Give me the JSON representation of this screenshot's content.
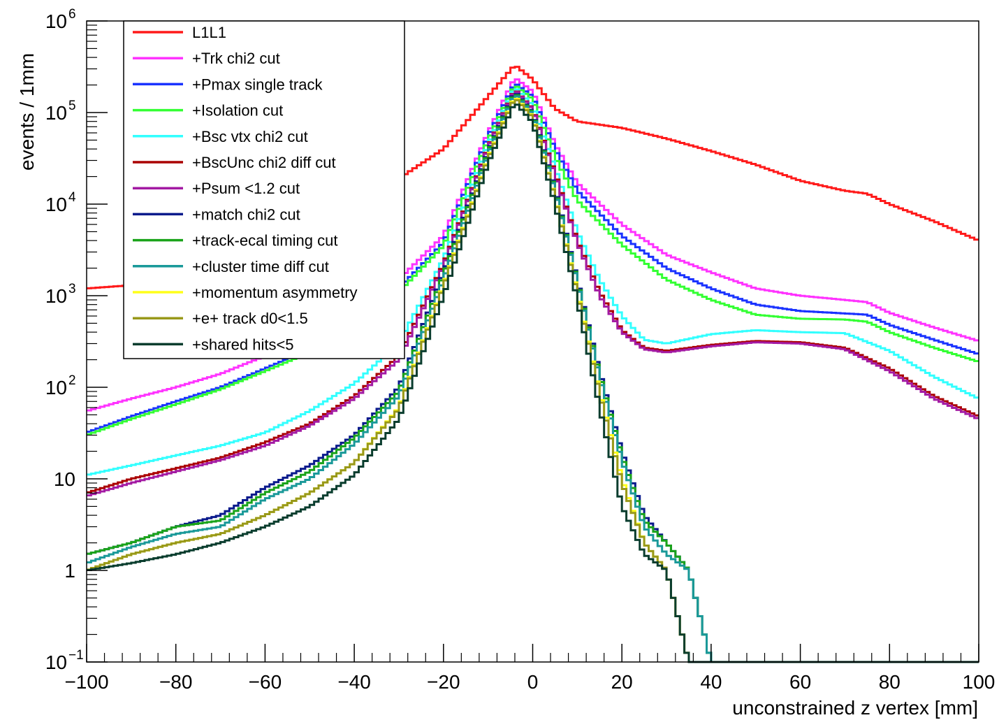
{
  "chart_data": {
    "type": "line",
    "title": "",
    "xlabel": "unconstrained z vertex [mm]",
    "ylabel": "events / 1mm",
    "xlim": [
      -100,
      100
    ],
    "ylim": [
      0.1,
      1000000
    ],
    "y_scale": "log",
    "legend_position": "top-left",
    "x_ticks": [
      {
        "value": -100,
        "label": "−100"
      },
      {
        "value": -80,
        "label": "−80"
      },
      {
        "value": -60,
        "label": "−60"
      },
      {
        "value": -40,
        "label": "−40"
      },
      {
        "value": -20,
        "label": "−20"
      },
      {
        "value": 0,
        "label": "0"
      },
      {
        "value": 20,
        "label": "20"
      },
      {
        "value": 40,
        "label": "40"
      },
      {
        "value": 60,
        "label": "60"
      },
      {
        "value": 80,
        "label": "80"
      },
      {
        "value": 100,
        "label": "100"
      }
    ],
    "y_ticks": [
      {
        "value": 0.1,
        "base": "10",
        "exp": "−1"
      },
      {
        "value": 1,
        "base": "1",
        "exp": ""
      },
      {
        "value": 10,
        "base": "10",
        "exp": ""
      },
      {
        "value": 100,
        "base": "10",
        "exp": "2"
      },
      {
        "value": 1000,
        "base": "10",
        "exp": "3"
      },
      {
        "value": 10000,
        "base": "10",
        "exp": "4"
      },
      {
        "value": 100000,
        "base": "10",
        "exp": "5"
      },
      {
        "value": 1000000,
        "base": "10",
        "exp": "6"
      }
    ],
    "series": [
      {
        "name": "L1L1",
        "color": "#ff1a1a",
        "points": [
          [
            -100,
            1200
          ],
          [
            -90,
            1300
          ],
          [
            -80,
            1600
          ],
          [
            -70,
            2200
          ],
          [
            -60,
            3500
          ],
          [
            -50,
            6000
          ],
          [
            -40,
            11000
          ],
          [
            -30,
            19000
          ],
          [
            -20,
            40000
          ],
          [
            -10,
            150000
          ],
          [
            -4,
            330000
          ],
          [
            0,
            230000
          ],
          [
            5,
            110000
          ],
          [
            10,
            80000
          ],
          [
            20,
            68000
          ],
          [
            30,
            52000
          ],
          [
            40,
            38000
          ],
          [
            50,
            27000
          ],
          [
            60,
            18000
          ],
          [
            70,
            14000
          ],
          [
            75,
            13000
          ],
          [
            80,
            10000
          ],
          [
            90,
            6500
          ],
          [
            100,
            4000
          ]
        ]
      },
      {
        "name": "+Trk chi2 cut",
        "color": "#ff33ff",
        "points": [
          [
            -100,
            55
          ],
          [
            -90,
            75
          ],
          [
            -80,
            100
          ],
          [
            -70,
            140
          ],
          [
            -60,
            220
          ],
          [
            -50,
            350
          ],
          [
            -40,
            700
          ],
          [
            -30,
            1500
          ],
          [
            -20,
            4500
          ],
          [
            -10,
            60000
          ],
          [
            -4,
            240000
          ],
          [
            0,
            170000
          ],
          [
            5,
            45000
          ],
          [
            10,
            17000
          ],
          [
            20,
            6000
          ],
          [
            30,
            2800
          ],
          [
            40,
            1800
          ],
          [
            50,
            1200
          ],
          [
            60,
            1000
          ],
          [
            70,
            900
          ],
          [
            75,
            850
          ],
          [
            80,
            650
          ],
          [
            90,
            450
          ],
          [
            100,
            320
          ]
        ]
      },
      {
        "name": "+Pmax single track",
        "color": "#1a33ff",
        "points": [
          [
            -100,
            32
          ],
          [
            -90,
            48
          ],
          [
            -80,
            70
          ],
          [
            -70,
            100
          ],
          [
            -60,
            160
          ],
          [
            -50,
            260
          ],
          [
            -40,
            550
          ],
          [
            -30,
            1200
          ],
          [
            -20,
            3800
          ],
          [
            -10,
            55000
          ],
          [
            -4,
            210000
          ],
          [
            0,
            150000
          ],
          [
            5,
            40000
          ],
          [
            10,
            14000
          ],
          [
            20,
            4500
          ],
          [
            30,
            2000
          ],
          [
            40,
            1200
          ],
          [
            50,
            800
          ],
          [
            60,
            680
          ],
          [
            70,
            640
          ],
          [
            75,
            620
          ],
          [
            80,
            480
          ],
          [
            90,
            330
          ],
          [
            100,
            230
          ]
        ]
      },
      {
        "name": "+Isolation cut",
        "color": "#33ff33",
        "points": [
          [
            -100,
            30
          ],
          [
            -90,
            45
          ],
          [
            -80,
            65
          ],
          [
            -70,
            95
          ],
          [
            -60,
            150
          ],
          [
            -50,
            240
          ],
          [
            -40,
            500
          ],
          [
            -30,
            1100
          ],
          [
            -20,
            3500
          ],
          [
            -10,
            50000
          ],
          [
            -4,
            200000
          ],
          [
            0,
            140000
          ],
          [
            5,
            33000
          ],
          [
            10,
            11000
          ],
          [
            20,
            3600
          ],
          [
            30,
            1500
          ],
          [
            40,
            900
          ],
          [
            50,
            620
          ],
          [
            60,
            560
          ],
          [
            70,
            550
          ],
          [
            75,
            520
          ],
          [
            80,
            400
          ],
          [
            90,
            270
          ],
          [
            100,
            190
          ]
        ]
      },
      {
        "name": "+Bsc vtx chi2 cut",
        "color": "#33ffff",
        "points": [
          [
            -100,
            11
          ],
          [
            -90,
            14
          ],
          [
            -80,
            18
          ],
          [
            -70,
            23
          ],
          [
            -60,
            32
          ],
          [
            -50,
            55
          ],
          [
            -40,
            110
          ],
          [
            -30,
            300
          ],
          [
            -20,
            2500
          ],
          [
            -10,
            45000
          ],
          [
            -4,
            190000
          ],
          [
            0,
            120000
          ],
          [
            5,
            25000
          ],
          [
            10,
            5000
          ],
          [
            15,
            1500
          ],
          [
            20,
            600
          ],
          [
            25,
            330
          ],
          [
            30,
            300
          ],
          [
            40,
            380
          ],
          [
            50,
            420
          ],
          [
            60,
            400
          ],
          [
            70,
            390
          ],
          [
            80,
            250
          ],
          [
            90,
            130
          ],
          [
            100,
            75
          ]
        ]
      },
      {
        "name": "+BscUnc chi2 diff cut",
        "color": "#aa0000",
        "points": [
          [
            -100,
            7
          ],
          [
            -90,
            10
          ],
          [
            -80,
            13
          ],
          [
            -70,
            17
          ],
          [
            -60,
            25
          ],
          [
            -50,
            40
          ],
          [
            -40,
            80
          ],
          [
            -30,
            220
          ],
          [
            -20,
            2200
          ],
          [
            -10,
            42000
          ],
          [
            -4,
            180000
          ],
          [
            0,
            110000
          ],
          [
            5,
            22000
          ],
          [
            10,
            4000
          ],
          [
            15,
            1100
          ],
          [
            20,
            420
          ],
          [
            25,
            270
          ],
          [
            30,
            250
          ],
          [
            40,
            290
          ],
          [
            50,
            320
          ],
          [
            60,
            310
          ],
          [
            70,
            270
          ],
          [
            80,
            160
          ],
          [
            90,
            80
          ],
          [
            100,
            48
          ]
        ]
      },
      {
        "name": "+Psum <1.2 cut",
        "color": "#a31aa3",
        "points": [
          [
            -100,
            6.5
          ],
          [
            -90,
            9
          ],
          [
            -80,
            12
          ],
          [
            -70,
            16
          ],
          [
            -60,
            23
          ],
          [
            -50,
            38
          ],
          [
            -40,
            75
          ],
          [
            -30,
            200
          ],
          [
            -20,
            2100
          ],
          [
            -10,
            41000
          ],
          [
            -4,
            178000
          ],
          [
            0,
            108000
          ],
          [
            5,
            21000
          ],
          [
            10,
            3800
          ],
          [
            15,
            1000
          ],
          [
            20,
            400
          ],
          [
            25,
            260
          ],
          [
            30,
            240
          ],
          [
            40,
            280
          ],
          [
            50,
            310
          ],
          [
            60,
            300
          ],
          [
            70,
            260
          ],
          [
            80,
            150
          ],
          [
            90,
            75
          ],
          [
            100,
            45
          ]
        ]
      },
      {
        "name": "+match chi2 cut",
        "color": "#0a1a8c",
        "points": [
          [
            -100,
            1.5
          ],
          [
            -90,
            2
          ],
          [
            -80,
            3
          ],
          [
            -70,
            4
          ],
          [
            -60,
            8
          ],
          [
            -50,
            14
          ],
          [
            -40,
            30
          ],
          [
            -30,
            100
          ],
          [
            -20,
            1800
          ],
          [
            -10,
            38000
          ],
          [
            -4,
            170000
          ],
          [
            0,
            100000
          ],
          [
            5,
            15000
          ],
          [
            10,
            1500
          ],
          [
            15,
            150
          ],
          [
            20,
            20
          ],
          [
            25,
            4
          ],
          [
            30,
            2
          ],
          [
            35,
            1
          ],
          [
            40,
            0.1
          ]
        ]
      },
      {
        "name": "+track-ecal timing cut",
        "color": "#1aa31a",
        "points": [
          [
            -100,
            1.5
          ],
          [
            -90,
            2
          ],
          [
            -80,
            3
          ],
          [
            -70,
            3.5
          ],
          [
            -60,
            7
          ],
          [
            -50,
            12
          ],
          [
            -40,
            28
          ],
          [
            -30,
            90
          ],
          [
            -20,
            1700
          ],
          [
            -10,
            37000
          ],
          [
            -4,
            165000
          ],
          [
            0,
            98000
          ],
          [
            5,
            14500
          ],
          [
            10,
            1450
          ],
          [
            15,
            140
          ],
          [
            20,
            18
          ],
          [
            25,
            3.5
          ],
          [
            30,
            2
          ],
          [
            35,
            1
          ],
          [
            40,
            0.1
          ]
        ]
      },
      {
        "name": "+cluster time diff cut",
        "color": "#1a9999",
        "points": [
          [
            -100,
            1.2
          ],
          [
            -90,
            1.8
          ],
          [
            -80,
            2.5
          ],
          [
            -70,
            3
          ],
          [
            -60,
            6
          ],
          [
            -50,
            10
          ],
          [
            -40,
            24
          ],
          [
            -30,
            80
          ],
          [
            -20,
            1500
          ],
          [
            -10,
            35000
          ],
          [
            -4,
            160000
          ],
          [
            0,
            95000
          ],
          [
            5,
            14000
          ],
          [
            10,
            1400
          ],
          [
            15,
            130
          ],
          [
            20,
            16
          ],
          [
            25,
            3
          ],
          [
            30,
            1.5
          ],
          [
            35,
            1
          ],
          [
            40,
            0.1
          ]
        ]
      },
      {
        "name": "+momentum asymmetry",
        "color": "#ffff1a",
        "points": [
          [
            -100,
            1
          ],
          [
            -90,
            1.5
          ],
          [
            -80,
            2
          ],
          [
            -70,
            2.5
          ],
          [
            -60,
            4
          ],
          [
            -50,
            7
          ],
          [
            -40,
            15
          ],
          [
            -30,
            60
          ],
          [
            -20,
            1300
          ],
          [
            -10,
            32000
          ],
          [
            -4,
            150000
          ],
          [
            0,
            90000
          ],
          [
            5,
            12000
          ],
          [
            10,
            1100
          ],
          [
            15,
            90
          ],
          [
            20,
            10
          ],
          [
            25,
            2
          ],
          [
            30,
            1
          ],
          [
            35,
            0.1
          ]
        ]
      },
      {
        "name": "+e+ track d0<1.5",
        "color": "#99991a",
        "points": [
          [
            -100,
            1
          ],
          [
            -90,
            1.5
          ],
          [
            -80,
            2
          ],
          [
            -70,
            2.5
          ],
          [
            -60,
            4
          ],
          [
            -50,
            7
          ],
          [
            -40,
            15
          ],
          [
            -30,
            58
          ],
          [
            -20,
            1250
          ],
          [
            -10,
            31000
          ],
          [
            -4,
            145000
          ],
          [
            0,
            88000
          ],
          [
            5,
            11800
          ],
          [
            10,
            1050
          ],
          [
            15,
            85
          ],
          [
            20,
            9
          ],
          [
            25,
            2
          ],
          [
            30,
            1
          ],
          [
            35,
            0.1
          ]
        ]
      },
      {
        "name": "+shared hits<5",
        "color": "#0a3d2e",
        "points": [
          [
            -100,
            1
          ],
          [
            -90,
            1.2
          ],
          [
            -80,
            1.5
          ],
          [
            -70,
            2
          ],
          [
            -60,
            3
          ],
          [
            -50,
            5
          ],
          [
            -40,
            11
          ],
          [
            -30,
            45
          ],
          [
            -20,
            1000
          ],
          [
            -10,
            28000
          ],
          [
            -4,
            130000
          ],
          [
            0,
            78000
          ],
          [
            5,
            10000
          ],
          [
            10,
            900
          ],
          [
            15,
            60
          ],
          [
            20,
            5
          ],
          [
            25,
            1.5
          ],
          [
            30,
            1
          ],
          [
            35,
            0.1
          ]
        ]
      }
    ]
  }
}
